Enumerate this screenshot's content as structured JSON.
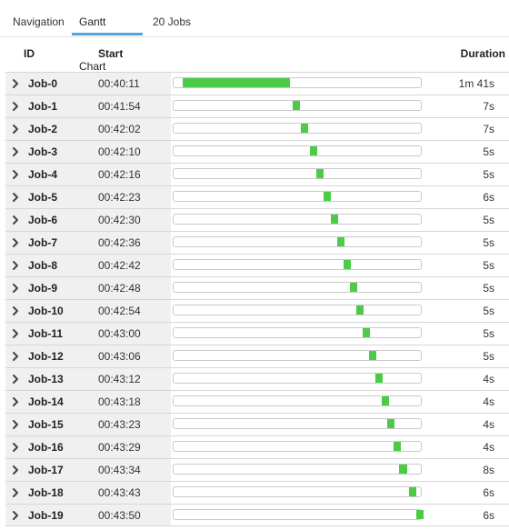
{
  "tabs": [
    {
      "label": "Navigation"
    },
    {
      "label": "Gantt Chart"
    },
    {
      "label": "20 Jobs"
    }
  ],
  "columns": {
    "id": "ID",
    "start": "Start",
    "duration": "Duration"
  },
  "timeline": {
    "start_sec": 0,
    "end_sec": 220
  },
  "colors": {
    "bar": "#4ccc46",
    "active_tab": "#4fa5d8"
  },
  "jobs": [
    {
      "id": "Job-0",
      "start": "00:40:11",
      "duration": "1m 41s",
      "offset_sec": 0,
      "dur_sec": 101
    },
    {
      "id": "Job-1",
      "start": "00:41:54",
      "duration": "7s",
      "offset_sec": 103,
      "dur_sec": 7
    },
    {
      "id": "Job-2",
      "start": "00:42:02",
      "duration": "7s",
      "offset_sec": 111,
      "dur_sec": 7
    },
    {
      "id": "Job-3",
      "start": "00:42:10",
      "duration": "5s",
      "offset_sec": 119,
      "dur_sec": 5
    },
    {
      "id": "Job-4",
      "start": "00:42:16",
      "duration": "5s",
      "offset_sec": 125,
      "dur_sec": 5
    },
    {
      "id": "Job-5",
      "start": "00:42:23",
      "duration": "6s",
      "offset_sec": 132,
      "dur_sec": 6
    },
    {
      "id": "Job-6",
      "start": "00:42:30",
      "duration": "5s",
      "offset_sec": 139,
      "dur_sec": 5
    },
    {
      "id": "Job-7",
      "start": "00:42:36",
      "duration": "5s",
      "offset_sec": 145,
      "dur_sec": 5
    },
    {
      "id": "Job-8",
      "start": "00:42:42",
      "duration": "5s",
      "offset_sec": 151,
      "dur_sec": 5
    },
    {
      "id": "Job-9",
      "start": "00:42:48",
      "duration": "5s",
      "offset_sec": 157,
      "dur_sec": 5
    },
    {
      "id": "Job-10",
      "start": "00:42:54",
      "duration": "5s",
      "offset_sec": 163,
      "dur_sec": 5
    },
    {
      "id": "Job-11",
      "start": "00:43:00",
      "duration": "5s",
      "offset_sec": 169,
      "dur_sec": 5
    },
    {
      "id": "Job-12",
      "start": "00:43:06",
      "duration": "5s",
      "offset_sec": 175,
      "dur_sec": 5
    },
    {
      "id": "Job-13",
      "start": "00:43:12",
      "duration": "4s",
      "offset_sec": 181,
      "dur_sec": 4
    },
    {
      "id": "Job-14",
      "start": "00:43:18",
      "duration": "4s",
      "offset_sec": 187,
      "dur_sec": 4
    },
    {
      "id": "Job-15",
      "start": "00:43:23",
      "duration": "4s",
      "offset_sec": 192,
      "dur_sec": 4
    },
    {
      "id": "Job-16",
      "start": "00:43:29",
      "duration": "4s",
      "offset_sec": 198,
      "dur_sec": 4
    },
    {
      "id": "Job-17",
      "start": "00:43:34",
      "duration": "8s",
      "offset_sec": 203,
      "dur_sec": 8
    },
    {
      "id": "Job-18",
      "start": "00:43:43",
      "duration": "6s",
      "offset_sec": 212,
      "dur_sec": 6
    },
    {
      "id": "Job-19",
      "start": "00:43:50",
      "duration": "6s",
      "offset_sec": 219,
      "dur_sec": 6
    }
  ]
}
